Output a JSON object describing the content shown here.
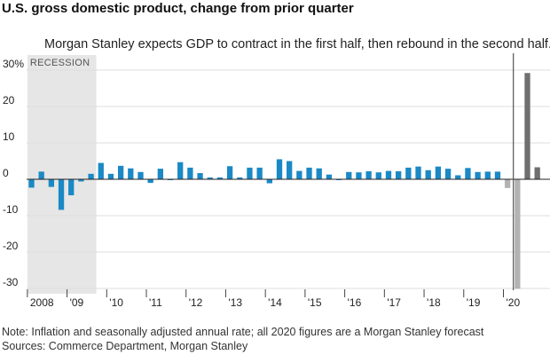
{
  "title": "U.S. gross domestic product, change from prior quarter",
  "notes": {
    "note": "Note: Inflation and seasonally adjusted annual rate; all 2020 figures are a Morgan Stanley forecast",
    "sources": "Sources: Commerce Department, Morgan Stanley"
  },
  "colors": {
    "historical": "#1a89c5",
    "forecast_dark": "#6f6f6f",
    "forecast_light": "#b3b3b3",
    "recession_band": "#e6e6e6",
    "annotation_line": "#555555",
    "grid": "#dddddd",
    "zero_line": "#222222"
  },
  "chart_data": {
    "type": "bar",
    "subtitle": "Morgan Stanley expects GDP to contract in the first half, then rebound in the second half.",
    "xlabel": "",
    "ylabel": "",
    "ylim": [
      -30,
      32
    ],
    "y_ticks": [
      {
        "value": 30,
        "label": "30%"
      },
      {
        "value": 20,
        "label": "20"
      },
      {
        "value": 10,
        "label": "10"
      },
      {
        "value": 0,
        "label": "0"
      },
      {
        "value": -10,
        "label": "-10"
      },
      {
        "value": -20,
        "label": "-20"
      },
      {
        "value": -30,
        "label": "-30"
      }
    ],
    "x_ticks": [
      "2008",
      "'09",
      "'10",
      "'11",
      "'12",
      "'13",
      "'14",
      "'15",
      "'16",
      "'17",
      "'18",
      "'19",
      "'20"
    ],
    "recession": {
      "label": "RECESSION",
      "start_index": 0,
      "end_index": 6
    },
    "grid": true,
    "categories": [
      "2008 Q1",
      "2008 Q2",
      "2008 Q3",
      "2008 Q4",
      "2009 Q1",
      "2009 Q2",
      "2009 Q3",
      "2009 Q4",
      "2010 Q1",
      "2010 Q2",
      "2010 Q3",
      "2010 Q4",
      "2011 Q1",
      "2011 Q2",
      "2011 Q3",
      "2011 Q4",
      "2012 Q1",
      "2012 Q2",
      "2012 Q3",
      "2012 Q4",
      "2013 Q1",
      "2013 Q2",
      "2013 Q3",
      "2013 Q4",
      "2014 Q1",
      "2014 Q2",
      "2014 Q3",
      "2014 Q4",
      "2015 Q1",
      "2015 Q2",
      "2015 Q3",
      "2015 Q4",
      "2016 Q1",
      "2016 Q2",
      "2016 Q3",
      "2016 Q4",
      "2017 Q1",
      "2017 Q2",
      "2017 Q3",
      "2017 Q4",
      "2018 Q1",
      "2018 Q2",
      "2018 Q3",
      "2018 Q4",
      "2019 Q1",
      "2019 Q2",
      "2019 Q3",
      "2019 Q4",
      "2020 Q1",
      "2020 Q2",
      "2020 Q3",
      "2020 Q4"
    ],
    "series": [
      {
        "values": [
          -2.3,
          2.1,
          -2.1,
          -8.4,
          -4.4,
          -0.6,
          1.5,
          4.5,
          1.5,
          3.7,
          3.0,
          2.0,
          -1.0,
          2.9,
          0.0,
          4.7,
          3.2,
          1.7,
          0.5,
          0.5,
          3.6,
          0.5,
          3.2,
          3.2,
          -1.1,
          5.5,
          5.0,
          2.3,
          3.2,
          3.0,
          1.3,
          0.0,
          2.0,
          1.9,
          2.2,
          1.9,
          2.3,
          2.2,
          3.2,
          3.5,
          2.5,
          3.5,
          2.9,
          1.1,
          3.1,
          2.0,
          2.1,
          2.1,
          -2.4,
          -30.1,
          29.2,
          3.3
        ],
        "forecast_from_index": 48
      }
    ],
    "annotation": {
      "type": "vertical-line",
      "index": 49
    }
  }
}
